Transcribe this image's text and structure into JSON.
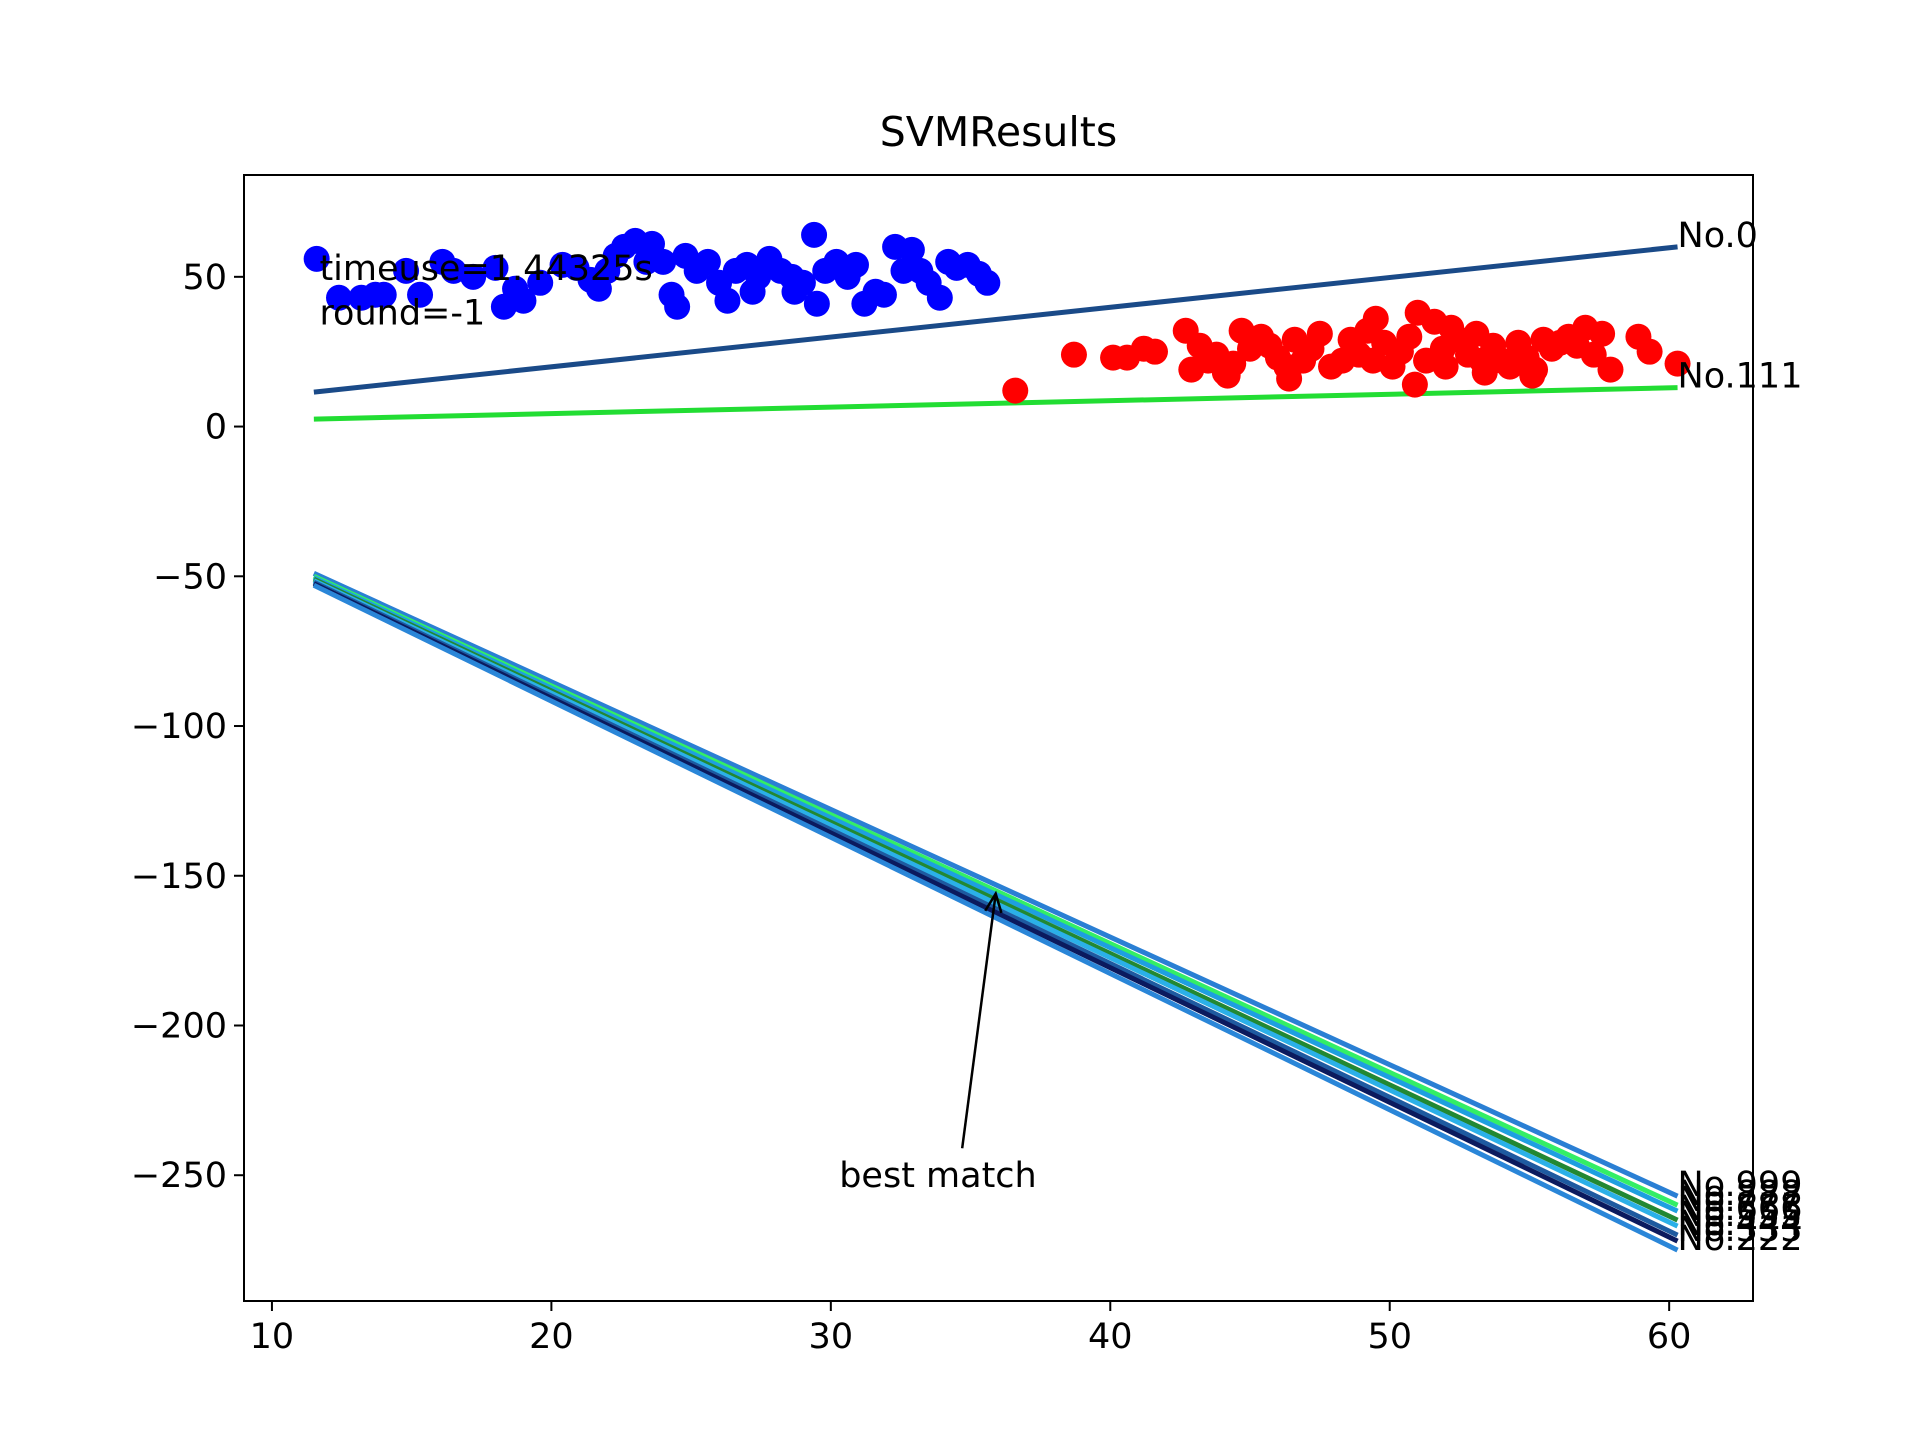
{
  "chart_data": {
    "type": "scatter",
    "title": "SVMResults",
    "xlabel": "",
    "ylabel": "",
    "xlim": [
      9,
      63
    ],
    "ylim": [
      -292,
      84
    ],
    "xticks": [
      10,
      20,
      30,
      40,
      50,
      60
    ],
    "yticks": [
      50,
      0,
      -50,
      -100,
      -150,
      -200,
      -250
    ],
    "ytick_labels": [
      "50",
      "0",
      "−50",
      "−100",
      "−150",
      "−200",
      "−250"
    ],
    "grid": false,
    "annotations": [
      {
        "name": "timeuse",
        "text": "timeuse=1.44325s",
        "x": 11.7,
        "y": 49
      },
      {
        "name": "round",
        "text": "round=-1",
        "x": 11.7,
        "y": 34
      },
      {
        "name": "best-match",
        "text": "best match",
        "x": 30.3,
        "y": -254,
        "arrow_from": [
          34.7,
          -241
        ],
        "arrow_to": [
          35.9,
          -156
        ]
      }
    ],
    "series": [
      {
        "kind": "scatter",
        "color": "#0000ff",
        "points": [
          [
            11.6,
            56
          ],
          [
            12.4,
            43
          ],
          [
            13.2,
            43
          ],
          [
            13.7,
            44
          ],
          [
            14.0,
            44
          ],
          [
            14.8,
            52
          ],
          [
            15.3,
            44
          ],
          [
            16.1,
            55
          ],
          [
            16.5,
            52
          ],
          [
            17.2,
            50
          ],
          [
            18.0,
            53
          ],
          [
            18.3,
            40
          ],
          [
            18.7,
            46
          ],
          [
            19.0,
            42
          ],
          [
            19.6,
            48
          ],
          [
            20.4,
            54
          ],
          [
            20.9,
            53
          ],
          [
            21.4,
            49
          ],
          [
            21.7,
            46
          ],
          [
            22.0,
            52
          ],
          [
            22.3,
            57
          ],
          [
            22.6,
            60
          ],
          [
            23.0,
            62
          ],
          [
            23.4,
            55
          ],
          [
            23.6,
            61
          ],
          [
            24.0,
            55
          ],
          [
            24.3,
            44
          ],
          [
            24.5,
            40
          ],
          [
            24.8,
            57
          ],
          [
            25.2,
            52
          ],
          [
            25.6,
            55
          ],
          [
            26.0,
            48
          ],
          [
            26.3,
            42
          ],
          [
            26.6,
            52
          ],
          [
            27.0,
            54
          ],
          [
            27.4,
            50
          ],
          [
            27.8,
            56
          ],
          [
            28.2,
            52
          ],
          [
            28.6,
            50
          ],
          [
            29.0,
            48
          ],
          [
            29.4,
            64
          ],
          [
            29.5,
            41
          ],
          [
            29.8,
            52
          ],
          [
            30.2,
            55
          ],
          [
            30.6,
            50
          ],
          [
            30.9,
            54
          ],
          [
            31.2,
            41
          ],
          [
            31.6,
            45
          ],
          [
            31.9,
            44
          ],
          [
            32.3,
            60
          ],
          [
            32.6,
            52
          ],
          [
            32.9,
            59
          ],
          [
            33.2,
            52
          ],
          [
            33.5,
            48
          ],
          [
            33.9,
            43
          ],
          [
            34.2,
            55
          ],
          [
            34.5,
            53
          ],
          [
            34.9,
            54
          ],
          [
            35.3,
            51
          ],
          [
            35.6,
            48
          ],
          [
            28.7,
            45
          ],
          [
            27.2,
            45
          ]
        ]
      },
      {
        "kind": "scatter",
        "color": "#ff0000",
        "points": [
          [
            36.6,
            12
          ],
          [
            38.7,
            24
          ],
          [
            40.1,
            23
          ],
          [
            40.6,
            23
          ],
          [
            41.2,
            26
          ],
          [
            41.6,
            25
          ],
          [
            42.7,
            32
          ],
          [
            42.9,
            19
          ],
          [
            43.2,
            27
          ],
          [
            43.5,
            22
          ],
          [
            43.8,
            24
          ],
          [
            44.1,
            18
          ],
          [
            44.4,
            21
          ],
          [
            44.7,
            32
          ],
          [
            45.0,
            26
          ],
          [
            45.4,
            30
          ],
          [
            45.7,
            27
          ],
          [
            46.0,
            23
          ],
          [
            46.3,
            20
          ],
          [
            46.6,
            29
          ],
          [
            46.9,
            22
          ],
          [
            47.2,
            26
          ],
          [
            47.5,
            31
          ],
          [
            47.9,
            20
          ],
          [
            48.3,
            22
          ],
          [
            48.6,
            29
          ],
          [
            48.9,
            24
          ],
          [
            49.2,
            32
          ],
          [
            49.5,
            36
          ],
          [
            49.8,
            28
          ],
          [
            50.1,
            20
          ],
          [
            50.4,
            25
          ],
          [
            50.7,
            30
          ],
          [
            51.0,
            38
          ],
          [
            51.3,
            22
          ],
          [
            51.6,
            35
          ],
          [
            51.9,
            26
          ],
          [
            52.2,
            33
          ],
          [
            52.5,
            29
          ],
          [
            52.8,
            24
          ],
          [
            53.1,
            31
          ],
          [
            53.4,
            18
          ],
          [
            53.7,
            27
          ],
          [
            54.0,
            22
          ],
          [
            54.3,
            20
          ],
          [
            54.6,
            28
          ],
          [
            54.9,
            23
          ],
          [
            55.2,
            19
          ],
          [
            55.5,
            29
          ],
          [
            55.8,
            26
          ],
          [
            56.1,
            28
          ],
          [
            56.4,
            30
          ],
          [
            56.7,
            27
          ],
          [
            57.0,
            33
          ],
          [
            57.3,
            24
          ],
          [
            57.6,
            31
          ],
          [
            57.9,
            19
          ],
          [
            58.9,
            30
          ],
          [
            59.3,
            25
          ],
          [
            60.3,
            21
          ],
          [
            50.9,
            14
          ],
          [
            46.4,
            16
          ],
          [
            44.2,
            17
          ],
          [
            55.1,
            17
          ],
          [
            49.4,
            22
          ],
          [
            52.0,
            20
          ],
          [
            53.3,
            22
          ]
        ]
      },
      {
        "kind": "line",
        "color": "#1a4a88",
        "label": "No.0",
        "x": [
          11.5,
          60.3
        ],
        "y": [
          11.5,
          60.0
        ]
      },
      {
        "kind": "line",
        "color": "#22dd33",
        "label": "No.111",
        "x": [
          11.5,
          60.3
        ],
        "y": [
          2.5,
          13.0
        ]
      },
      {
        "kind": "line",
        "color": "#2a7fd4",
        "label": "No.999",
        "x": [
          11.5,
          60.3
        ],
        "y": [
          -49,
          -257
        ]
      },
      {
        "kind": "line",
        "color": "#33ee66",
        "label": "No.888",
        "x": [
          11.5,
          60.3
        ],
        "y": [
          -50,
          -260
        ]
      },
      {
        "kind": "line",
        "color": "#1e9fe0",
        "label": "No.777",
        "x": [
          11.5,
          60.3
        ],
        "y": [
          -50.5,
          -262
        ]
      },
      {
        "kind": "line",
        "color": "#228833",
        "label": "No.666",
        "x": [
          11.5,
          60.3
        ],
        "y": [
          -51,
          -265
        ]
      },
      {
        "kind": "line",
        "color": "#2bb0e8",
        "label": "No.555",
        "x": [
          11.5,
          60.3
        ],
        "y": [
          -51.5,
          -267
        ]
      },
      {
        "kind": "line",
        "color": "#1e5aa0",
        "label": "No.444",
        "x": [
          11.5,
          60.3
        ],
        "y": [
          -52,
          -270
        ]
      },
      {
        "kind": "line",
        "color": "#0b1a5e",
        "label": "No.333",
        "x": [
          11.5,
          60.3
        ],
        "y": [
          -52.5,
          -272
        ]
      },
      {
        "kind": "line",
        "color": "#2a86d8",
        "label": "No.222",
        "x": [
          11.5,
          60.3
        ],
        "y": [
          -53,
          -275
        ]
      }
    ]
  }
}
